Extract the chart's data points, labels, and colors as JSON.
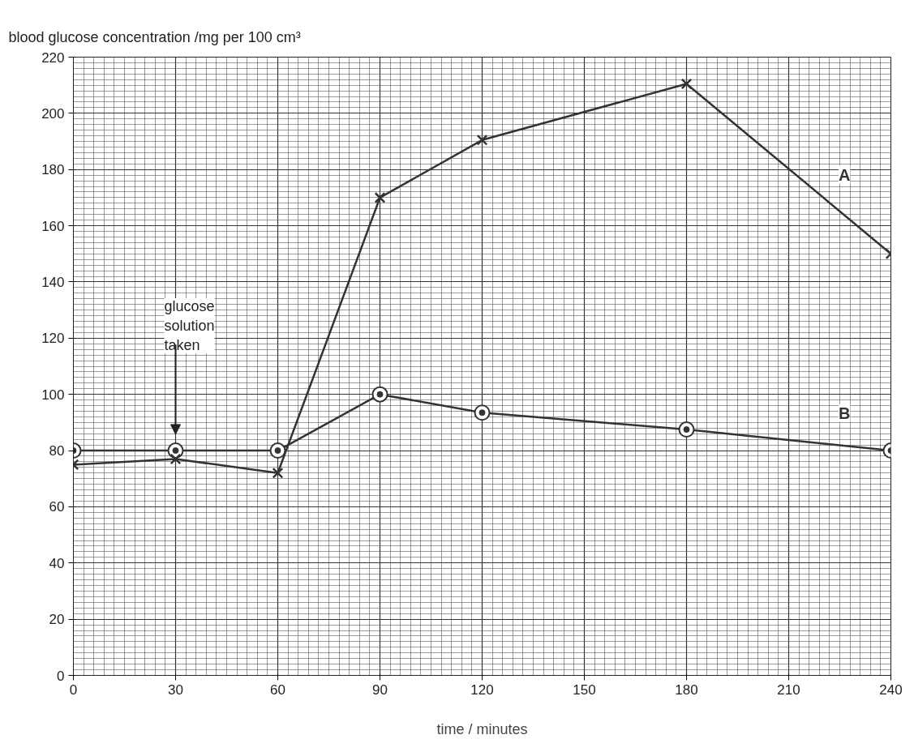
{
  "chart_data": {
    "type": "line",
    "ylabel": "blood glucose concentration /mg per 100 cm³",
    "xlabel": "time / minutes",
    "x": [
      0,
      30,
      60,
      90,
      120,
      180,
      240
    ],
    "series": [
      {
        "name": "A",
        "color": "#333333",
        "marker": "cross",
        "values": [
          75,
          77,
          72,
          170,
          190.5,
          210.5,
          150
        ]
      },
      {
        "name": "B",
        "color": "#333333",
        "marker": "circle",
        "values": [
          80,
          80,
          80,
          100,
          93.5,
          87.5,
          80
        ]
      }
    ],
    "annotations": [
      "glucose solution taken"
    ],
    "xlim": [
      0,
      240
    ],
    "ylim": [
      0,
      220
    ],
    "xticks": [
      0,
      30,
      60,
      90,
      120,
      150,
      180,
      210,
      240
    ],
    "yticks": [
      0,
      20,
      40,
      60,
      80,
      100,
      120,
      140,
      160,
      180,
      200,
      220
    ],
    "grid": true,
    "line_style": "solid"
  }
}
